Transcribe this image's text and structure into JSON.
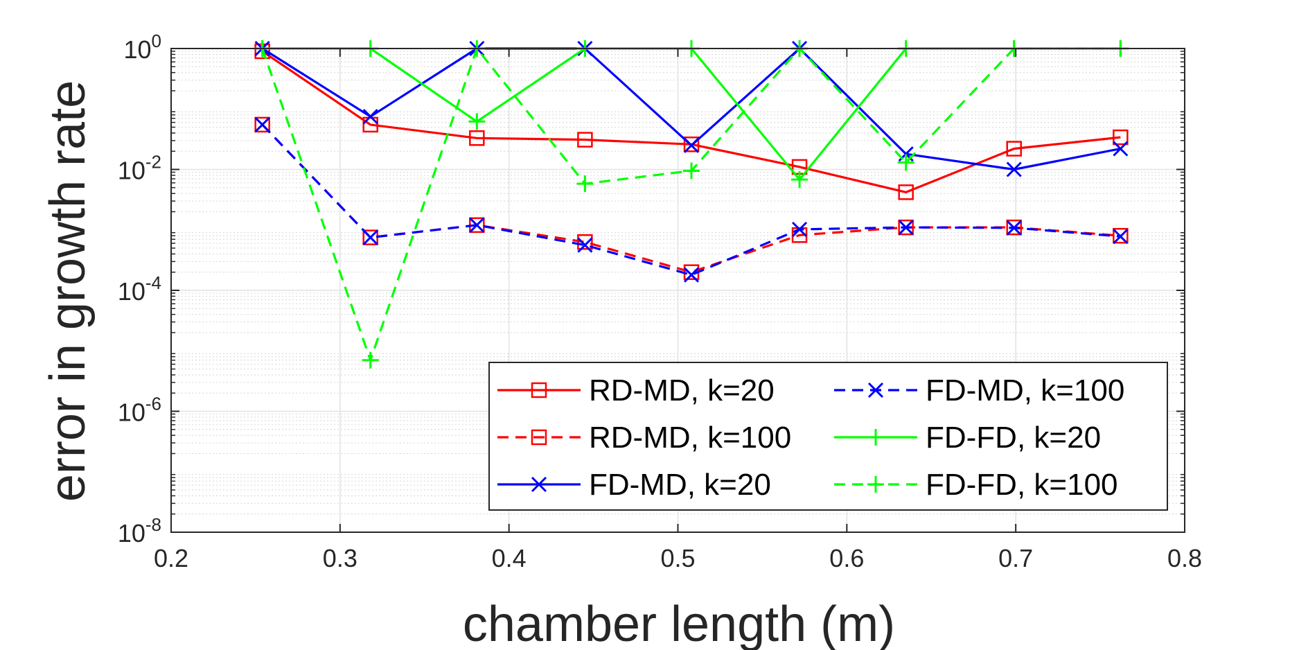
{
  "chart_data": {
    "type": "line",
    "xlabel": "chamber length (m)",
    "ylabel": "error in growth rate",
    "xlim": [
      0.2,
      0.8
    ],
    "ylim": [
      1e-08,
      1
    ],
    "yscale": "log",
    "grid": true,
    "minor_grid": true,
    "legend_position": "bottom-right",
    "legend_columns": 2,
    "xticks": [
      {
        "value": 0.2,
        "label": "0.2"
      },
      {
        "value": 0.3,
        "label": "0.3"
      },
      {
        "value": 0.4,
        "label": "0.4"
      },
      {
        "value": 0.5,
        "label": "0.5"
      },
      {
        "value": 0.6,
        "label": "0.6"
      },
      {
        "value": 0.7,
        "label": "0.7"
      },
      {
        "value": 0.8,
        "label": "0.8"
      }
    ],
    "yticks": [
      {
        "value": 1e-08,
        "base": "10",
        "exp": "-8"
      },
      {
        "value": 1e-06,
        "base": "10",
        "exp": "-6"
      },
      {
        "value": 0.0001,
        "base": "10",
        "exp": "-4"
      },
      {
        "value": 0.01,
        "base": "10",
        "exp": "-2"
      },
      {
        "value": 1,
        "base": "10",
        "exp": "0"
      }
    ],
    "x": [
      0.254,
      0.318,
      0.381,
      0.445,
      0.508,
      0.572,
      0.635,
      0.699,
      0.762
    ],
    "series": [
      {
        "name": "RD-MD, k=20",
        "color": "#ff0000",
        "dash": "solid",
        "marker": "square",
        "values": [
          0.9,
          0.055,
          0.033,
          0.031,
          0.026,
          0.011,
          0.0042,
          0.022,
          0.034
        ]
      },
      {
        "name": "RD-MD, k=100",
        "color": "#ff0000",
        "dash": "dashed",
        "marker": "square",
        "values": [
          0.055,
          0.00075,
          0.0012,
          0.00063,
          0.0002,
          0.00082,
          0.0011,
          0.0011,
          0.0008
        ]
      },
      {
        "name": "FD-MD, k=20",
        "color": "#0000ff",
        "dash": "solid",
        "marker": "x",
        "values": [
          1.0,
          0.075,
          1.0,
          1.0,
          0.025,
          1.0,
          0.018,
          0.01,
          0.022
        ]
      },
      {
        "name": "FD-MD, k=100",
        "color": "#0000ff",
        "dash": "dashed",
        "marker": "x",
        "values": [
          0.055,
          0.00075,
          0.0012,
          0.00056,
          0.00018,
          0.00102,
          0.0011,
          0.00108,
          0.00078
        ]
      },
      {
        "name": "FD-FD, k=20",
        "color": "#00ff00",
        "dash": "solid",
        "marker": "plus",
        "values": [
          1.0,
          1.0,
          0.062,
          1.0,
          1.0,
          0.0068,
          1.0,
          1.0,
          1.0
        ]
      },
      {
        "name": "FD-FD, k=100",
        "color": "#00ff00",
        "dash": "dashed",
        "marker": "plus",
        "values": [
          1.0,
          7e-06,
          1.0,
          0.0058,
          0.0095,
          1.0,
          0.013,
          1.0,
          1.0
        ]
      }
    ]
  }
}
